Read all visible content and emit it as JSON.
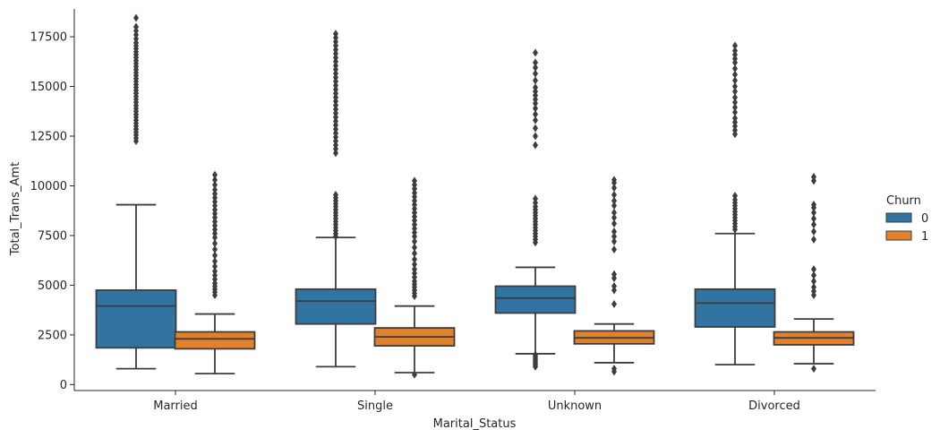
{
  "chart_data": {
    "type": "box",
    "xlabel": "Marital_Status",
    "ylabel": "Total_Trans_Amt",
    "ylim": [
      -300,
      18900
    ],
    "yticks": [
      0,
      2500,
      5000,
      7500,
      10000,
      12500,
      15000,
      17500
    ],
    "ytick_labels": [
      "0",
      "2500",
      "5000",
      "7500",
      "10000",
      "12500",
      "15000",
      "17500"
    ],
    "categories": [
      "Married",
      "Single",
      "Unknown",
      "Divorced"
    ],
    "legend": {
      "title": "Churn",
      "position": "right",
      "entries": [
        {
          "label": "0",
          "color": "#3274a1"
        },
        {
          "label": "1",
          "color": "#e1812c"
        }
      ]
    },
    "series": [
      {
        "name": "0",
        "color": "#3274a1",
        "boxes": [
          {
            "category": "Married",
            "whisker_low": 800,
            "q1": 1850,
            "median": 3950,
            "q3": 4750,
            "whisker_high": 9050,
            "outliers": [
              12250,
              12400,
              12550,
              12700,
              12850,
              13000,
              13150,
              13300,
              13450,
              13600,
              13750,
              13900,
              14050,
              14200,
              14350,
              14500,
              14650,
              14800,
              14950,
              15100,
              15250,
              15400,
              15550,
              15700,
              15850,
              16000,
              16150,
              16300,
              16450,
              16600,
              16750,
              16900,
              17050,
              17200,
              17400,
              17600,
              17800,
              18000,
              18450
            ]
          },
          {
            "category": "Single",
            "whisker_low": 900,
            "q1": 3050,
            "median": 4200,
            "q3": 4800,
            "whisker_high": 7400,
            "outliers": [
              7450,
              7600,
              7750,
              7900,
              8050,
              8200,
              8350,
              8500,
              8650,
              8800,
              8950,
              9100,
              9250,
              9400,
              9550,
              11650,
              11850,
              12050,
              12250,
              12450,
              12650,
              12850,
              13050,
              13250,
              13450,
              13650,
              13850,
              14050,
              14250,
              14450,
              14650,
              14850,
              15050,
              15250,
              15450,
              15650,
              15850,
              16050,
              16250,
              16450,
              16650,
              16850,
              17050,
              17250,
              17450,
              17650
            ]
          },
          {
            "category": "Unknown",
            "whisker_low": 1550,
            "q1": 3600,
            "median": 4350,
            "q3": 4950,
            "whisker_high": 5900,
            "outliers": [
              900,
              1000,
              1100,
              1200,
              1300,
              1400,
              1500,
              7150,
              7300,
              7450,
              7600,
              7750,
              7900,
              8050,
              8200,
              8350,
              8500,
              8650,
              8800,
              8950,
              9150,
              9350,
              12050,
              12500,
              12900,
              13300,
              13600,
              13900,
              14150,
              14350,
              14550,
              14750,
              14950,
              15300,
              15650,
              15950,
              16200,
              16700
            ]
          },
          {
            "category": "Divorced",
            "whisker_low": 1000,
            "q1": 2900,
            "median": 4100,
            "q3": 4800,
            "whisker_high": 7600,
            "outliers": [
              7800,
              7950,
              8100,
              8250,
              8400,
              8550,
              8700,
              8850,
              9000,
              9150,
              9300,
              9500,
              12600,
              12800,
              13000,
              13200,
              13400,
              13700,
              13950,
              14200,
              14450,
              14750,
              15000,
              15300,
              15600,
              15900,
              16200,
              16400,
              16600,
              16800,
              17050
            ]
          }
        ]
      },
      {
        "name": "1",
        "color": "#e1812c",
        "boxes": [
          {
            "category": "Married",
            "whisker_low": 550,
            "q1": 1800,
            "median": 2300,
            "q3": 2650,
            "whisker_high": 3550,
            "outliers": [
              4500,
              4650,
              4800,
              4950,
              5100,
              5300,
              5500,
              5700,
              5950,
              6200,
              6500,
              6800,
              7100,
              7400,
              7600,
              7800,
              8000,
              8200,
              8400,
              8600,
              8800,
              9000,
              9200,
              9400,
              9600,
              9800,
              10050,
              10300,
              10550
            ]
          },
          {
            "category": "Single",
            "whisker_low": 600,
            "q1": 1950,
            "median": 2400,
            "q3": 2850,
            "whisker_high": 3950,
            "outliers": [
              500,
              4450,
              4600,
              4750,
              4900,
              5050,
              5200,
              5400,
              5600,
              5800,
              6050,
              6300,
              6600,
              6900,
              7200,
              7450,
              7650,
              7850,
              8050,
              8250,
              8450,
              8650,
              8850,
              9050,
              9250,
              9450,
              9650,
              9850,
              10050,
              10250
            ]
          },
          {
            "category": "Unknown",
            "whisker_low": 1100,
            "q1": 2050,
            "median": 2350,
            "q3": 2700,
            "whisker_high": 3050,
            "outliers": [
              650,
              800,
              4050,
              4750,
              4950,
              5350,
              5550,
              6800,
              7200,
              7450,
              7700,
              8100,
              8400,
              8650,
              9000,
              9250,
              9550,
              9900,
              10150,
              10300
            ]
          },
          {
            "category": "Divorced",
            "whisker_low": 1050,
            "q1": 2000,
            "median": 2350,
            "q3": 2650,
            "whisker_high": 3300,
            "outliers": [
              800,
              4500,
              4700,
              4900,
              5200,
              5500,
              5800,
              7300,
              7700,
              8050,
              8350,
              8650,
              8900,
              9050,
              10250,
              10450
            ]
          }
        ]
      }
    ]
  }
}
